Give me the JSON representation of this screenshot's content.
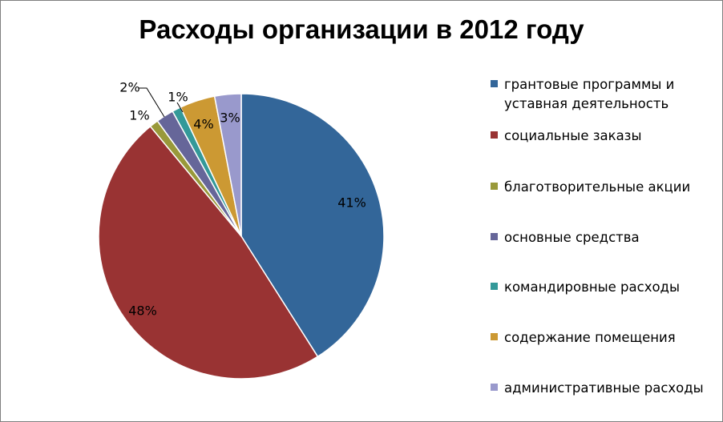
{
  "chart_data": {
    "type": "pie",
    "title": "Расходы организации в 2012 году",
    "legend_position": "right",
    "slices": [
      {
        "name": "грантовые программы и уставная деятельность",
        "value": 41,
        "label": "41%",
        "color": "#336699"
      },
      {
        "name": "социальные заказы",
        "value": 48,
        "label": "48%",
        "color": "#993333"
      },
      {
        "name": "благотворительные акции",
        "value": 1,
        "label": "1%",
        "color": "#99993a"
      },
      {
        "name": "основные средства",
        "value": 2,
        "label": "2%",
        "color": "#666699"
      },
      {
        "name": "командировные расходы",
        "value": 1,
        "label": "1%",
        "color": "#339999"
      },
      {
        "name": "содержание помещения",
        "value": 4,
        "label": "4%",
        "color": "#cc9933"
      },
      {
        "name": "административные расходы",
        "value": 3,
        "label": "3%",
        "color": "#9999cc"
      }
    ]
  }
}
